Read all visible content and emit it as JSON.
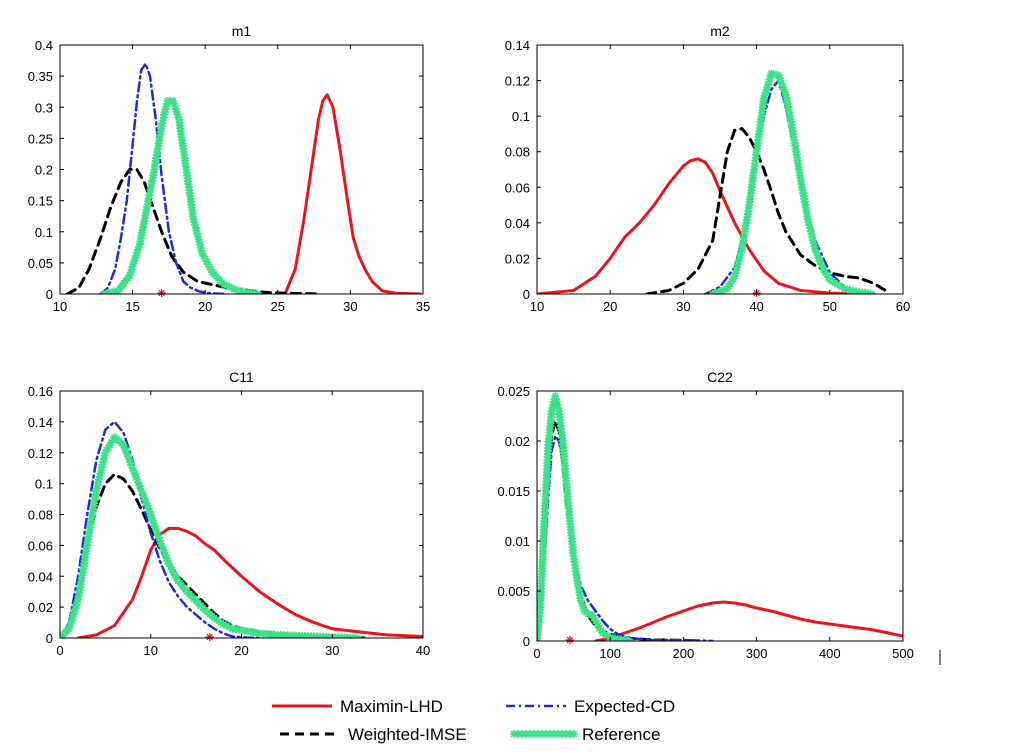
{
  "colors": {
    "maximin": "#e8161b",
    "expected": "#1f2bd6",
    "weighted": "#000000",
    "reference": "#3ee08a",
    "marker": "#e8161b"
  },
  "legend": {
    "entries": [
      {
        "key": "maximin",
        "label": "Maximin-LHD",
        "style": "solid"
      },
      {
        "key": "expected",
        "label": "Expected-CD",
        "style": "dashdot"
      },
      {
        "key": "weighted",
        "label": "Weighted-IMSE",
        "style": "dashed"
      },
      {
        "key": "reference",
        "label": "Reference",
        "style": "starred"
      }
    ]
  },
  "chart_data": [
    {
      "type": "line",
      "title": "m1",
      "xlim": [
        10,
        35
      ],
      "ylim": [
        0,
        0.4
      ],
      "xticks": [
        10,
        15,
        20,
        25,
        30,
        35
      ],
      "yticks": [
        0,
        0.05,
        0.1,
        0.15,
        0.2,
        0.25,
        0.3,
        0.35,
        0.4
      ],
      "xtick_labels": [
        "10",
        "15",
        "20",
        "25",
        "30",
        "35"
      ],
      "ytick_labels": [
        "0",
        "0.05",
        "0.1",
        "0.15",
        "0.2",
        "0.25",
        "0.3",
        "0.35",
        "0.4"
      ],
      "true_value": 17,
      "series": [
        {
          "name": "Maximin-LHD",
          "key": "maximin",
          "x": [
            25.5,
            26.2,
            26.8,
            27.3,
            27.8,
            28.1,
            28.4,
            28.8,
            29.3,
            29.8,
            30.2,
            30.6,
            31.0,
            31.5,
            32.2,
            33.2,
            34.8
          ],
          "y": [
            0,
            0.04,
            0.12,
            0.2,
            0.28,
            0.31,
            0.32,
            0.3,
            0.23,
            0.15,
            0.09,
            0.06,
            0.04,
            0.02,
            0.005,
            0.001,
            0
          ]
        },
        {
          "name": "Expected-CD",
          "key": "expected",
          "x": [
            12.8,
            13.3,
            13.8,
            14.2,
            14.6,
            15.0,
            15.3,
            15.6,
            15.9,
            16.2,
            16.6,
            17.0,
            17.5,
            18.0,
            18.5,
            19.0,
            19.6,
            20.4,
            21.5
          ],
          "y": [
            0,
            0.01,
            0.04,
            0.09,
            0.15,
            0.24,
            0.31,
            0.36,
            0.37,
            0.35,
            0.28,
            0.19,
            0.1,
            0.05,
            0.02,
            0.01,
            0.004,
            0.001,
            0
          ]
        },
        {
          "name": "Weighted-IMSE",
          "key": "weighted",
          "x": [
            10.5,
            11.3,
            12.0,
            12.8,
            13.5,
            14.2,
            14.8,
            15.3,
            15.8,
            16.4,
            17.0,
            17.7,
            18.5,
            19.5,
            20.5,
            21.5,
            22.5,
            23.5,
            24.5,
            26.0,
            28.0
          ],
          "y": [
            0,
            0.01,
            0.04,
            0.09,
            0.14,
            0.18,
            0.2,
            0.2,
            0.18,
            0.14,
            0.1,
            0.06,
            0.035,
            0.02,
            0.015,
            0.01,
            0.007,
            0.004,
            0.002,
            0.001,
            0
          ]
        },
        {
          "name": "Reference",
          "key": "reference",
          "x": [
            13.0,
            14.0,
            14.8,
            15.5,
            16.0,
            16.5,
            17.0,
            17.4,
            17.8,
            18.2,
            18.7,
            19.2,
            19.8,
            20.5,
            21.3,
            22.2,
            23.0,
            23.8
          ],
          "y": [
            0,
            0.005,
            0.03,
            0.08,
            0.14,
            0.2,
            0.27,
            0.31,
            0.31,
            0.28,
            0.2,
            0.12,
            0.065,
            0.035,
            0.015,
            0.006,
            0.002,
            0
          ]
        }
      ]
    },
    {
      "type": "line",
      "title": "m2",
      "xlim": [
        10,
        60
      ],
      "ylim": [
        0,
        0.14
      ],
      "xticks": [
        10,
        20,
        30,
        40,
        50,
        60
      ],
      "yticks": [
        0,
        0.02,
        0.04,
        0.06,
        0.08,
        0.1,
        0.12,
        0.14
      ],
      "xtick_labels": [
        "10",
        "20",
        "30",
        "40",
        "50",
        "60"
      ],
      "ytick_labels": [
        "0",
        "0.02",
        "0.04",
        "0.06",
        "0.08",
        "0.1",
        "0.12",
        "0.14"
      ],
      "true_value": 40,
      "series": [
        {
          "name": "Maximin-LHD",
          "key": "maximin",
          "x": [
            10,
            15,
            18,
            20,
            22,
            24,
            26,
            28,
            30,
            31,
            32,
            33,
            34,
            35,
            37,
            39,
            41,
            43,
            46,
            50,
            55
          ],
          "y": [
            0,
            0.002,
            0.01,
            0.02,
            0.032,
            0.04,
            0.05,
            0.062,
            0.072,
            0.075,
            0.076,
            0.074,
            0.068,
            0.058,
            0.04,
            0.025,
            0.013,
            0.006,
            0.002,
            0.0005,
            0
          ]
        },
        {
          "name": "Expected-CD",
          "key": "expected",
          "x": [
            33,
            35,
            37,
            38,
            39,
            40,
            41,
            42,
            43,
            44,
            45,
            46,
            47,
            48,
            50,
            52,
            54,
            56
          ],
          "y": [
            0,
            0.004,
            0.015,
            0.03,
            0.055,
            0.08,
            0.1,
            0.115,
            0.12,
            0.105,
            0.085,
            0.065,
            0.045,
            0.03,
            0.012,
            0.004,
            0.001,
            0
          ]
        },
        {
          "name": "Weighted-IMSE",
          "key": "weighted",
          "x": [
            25,
            28,
            30,
            32,
            34,
            35,
            36,
            37,
            38,
            39,
            40,
            41,
            42,
            43,
            44,
            46,
            48,
            50,
            52,
            54,
            56,
            58
          ],
          "y": [
            0,
            0.002,
            0.006,
            0.014,
            0.03,
            0.055,
            0.08,
            0.092,
            0.093,
            0.088,
            0.08,
            0.07,
            0.058,
            0.045,
            0.035,
            0.022,
            0.016,
            0.012,
            0.01,
            0.009,
            0.006,
            0.001
          ]
        },
        {
          "name": "Reference",
          "key": "reference",
          "x": [
            34,
            36,
            37,
            38,
            39,
            40,
            41,
            42,
            43,
            44,
            45,
            46,
            47,
            48,
            49,
            50,
            52,
            54,
            56
          ],
          "y": [
            0,
            0.003,
            0.01,
            0.025,
            0.05,
            0.08,
            0.11,
            0.124,
            0.123,
            0.112,
            0.09,
            0.065,
            0.042,
            0.025,
            0.015,
            0.008,
            0.003,
            0.001,
            0
          ]
        }
      ]
    },
    {
      "type": "line",
      "title": "C11",
      "xlim": [
        0,
        40
      ],
      "ylim": [
        0,
        0.16
      ],
      "xticks": [
        0,
        10,
        20,
        30,
        40
      ],
      "yticks": [
        0,
        0.02,
        0.04,
        0.06,
        0.08,
        0.1,
        0.12,
        0.14,
        0.16
      ],
      "xtick_labels": [
        "0",
        "10",
        "20",
        "30",
        "40"
      ],
      "ytick_labels": [
        "0",
        "0.02",
        "0.04",
        "0.06",
        "0.08",
        "0.1",
        "0.12",
        "0.14",
        "0.16"
      ],
      "true_value": 16.5,
      "series": [
        {
          "name": "Maximin-LHD",
          "key": "maximin",
          "x": [
            2,
            4,
            6,
            8,
            9,
            10,
            11,
            12,
            13,
            14,
            15,
            16,
            17,
            18,
            20,
            22,
            24,
            26,
            28,
            30,
            33,
            36,
            40
          ],
          "y": [
            0,
            0.002,
            0.008,
            0.025,
            0.04,
            0.057,
            0.067,
            0.071,
            0.071,
            0.069,
            0.066,
            0.061,
            0.057,
            0.051,
            0.04,
            0.03,
            0.022,
            0.015,
            0.01,
            0.006,
            0.004,
            0.002,
            0.001
          ]
        },
        {
          "name": "Expected-CD",
          "key": "expected",
          "x": [
            0,
            1,
            2,
            3,
            4,
            5,
            6,
            7,
            8,
            9,
            10,
            11,
            12,
            13,
            14,
            15,
            16,
            17,
            18,
            19,
            20,
            21,
            22
          ],
          "y": [
            0,
            0.01,
            0.04,
            0.08,
            0.115,
            0.135,
            0.14,
            0.133,
            0.115,
            0.09,
            0.068,
            0.05,
            0.036,
            0.027,
            0.02,
            0.015,
            0.01,
            0.006,
            0.003,
            0.001,
            0.0005,
            0.0002,
            0
          ]
        },
        {
          "name": "Weighted-IMSE",
          "key": "weighted",
          "x": [
            0,
            1,
            2,
            3,
            4,
            5,
            6,
            7,
            8,
            9,
            10,
            11,
            12,
            13,
            14,
            15,
            16,
            17,
            18,
            19,
            20,
            22,
            24,
            26,
            28,
            30,
            32,
            34
          ],
          "y": [
            0,
            0.007,
            0.03,
            0.06,
            0.085,
            0.1,
            0.106,
            0.103,
            0.095,
            0.083,
            0.07,
            0.058,
            0.048,
            0.04,
            0.034,
            0.028,
            0.022,
            0.016,
            0.011,
            0.008,
            0.006,
            0.004,
            0.003,
            0.002,
            0.001,
            0.0005,
            0.0002,
            0
          ]
        },
        {
          "name": "Reference",
          "key": "reference",
          "x": [
            0,
            1,
            2,
            3,
            4,
            5,
            6,
            7,
            8,
            9,
            10,
            11,
            12,
            13,
            14,
            15,
            16,
            17,
            18,
            19,
            20,
            21,
            22,
            24,
            26,
            28,
            30,
            33
          ],
          "y": [
            0,
            0.006,
            0.025,
            0.06,
            0.095,
            0.12,
            0.13,
            0.125,
            0.11,
            0.095,
            0.08,
            0.063,
            0.048,
            0.037,
            0.03,
            0.024,
            0.018,
            0.013,
            0.009,
            0.006,
            0.005,
            0.004,
            0.003,
            0.002,
            0.0015,
            0.001,
            0.0005,
            0
          ]
        }
      ]
    },
    {
      "type": "line",
      "title": "C22",
      "xlim": [
        0,
        500
      ],
      "ylim": [
        0,
        0.025
      ],
      "xticks": [
        0,
        100,
        200,
        300,
        400,
        500
      ],
      "yticks": [
        0,
        0.005,
        0.01,
        0.015,
        0.02,
        0.025
      ],
      "xtick_labels": [
        "0",
        "100",
        "200",
        "300",
        "400",
        "500"
      ],
      "ytick_labels": [
        "0",
        "0.005",
        "0.01",
        "0.015",
        "0.02",
        "0.025"
      ],
      "true_value": 45,
      "series": [
        {
          "name": "Maximin-LHD",
          "key": "maximin",
          "x": [
            80,
            100,
            120,
            140,
            160,
            180,
            200,
            220,
            240,
            255,
            270,
            285,
            300,
            320,
            340,
            360,
            380,
            400,
            420,
            440,
            460,
            480,
            500
          ],
          "y": [
            0,
            0.0003,
            0.0008,
            0.0013,
            0.0019,
            0.0025,
            0.003,
            0.0035,
            0.0038,
            0.0039,
            0.0038,
            0.0036,
            0.0033,
            0.003,
            0.0026,
            0.0022,
            0.0019,
            0.0017,
            0.0015,
            0.0013,
            0.0011,
            0.0008,
            0.0005
          ]
        },
        {
          "name": "Expected-CD",
          "key": "expected",
          "x": [
            0,
            5,
            10,
            15,
            20,
            25,
            30,
            35,
            40,
            45,
            50,
            55,
            60,
            70,
            80,
            90,
            100,
            110,
            120,
            140,
            160,
            180,
            200,
            220,
            240
          ],
          "y": [
            0,
            0.002,
            0.008,
            0.014,
            0.019,
            0.0205,
            0.02,
            0.018,
            0.015,
            0.012,
            0.009,
            0.007,
            0.0055,
            0.004,
            0.003,
            0.002,
            0.0012,
            0.0007,
            0.0004,
            0.0002,
            0.0001,
            0.0001,
            0.0001,
            5e-05,
            0
          ]
        },
        {
          "name": "Weighted-IMSE",
          "key": "weighted",
          "x": [
            0,
            5,
            10,
            15,
            20,
            25,
            30,
            35,
            40,
            45,
            50,
            55,
            60,
            70,
            80,
            90,
            100,
            120,
            140,
            160,
            180,
            200,
            220
          ],
          "y": [
            0,
            0.003,
            0.01,
            0.016,
            0.0205,
            0.022,
            0.021,
            0.018,
            0.014,
            0.011,
            0.008,
            0.006,
            0.0045,
            0.0025,
            0.0015,
            0.001,
            0.0007,
            0.0003,
            0.0002,
            0.0001,
            0.0001,
            5e-05,
            0
          ]
        },
        {
          "name": "Reference",
          "key": "reference",
          "x": [
            0,
            5,
            10,
            15,
            20,
            25,
            30,
            35,
            40,
            45,
            50,
            55,
            60,
            65,
            70,
            75,
            80,
            85,
            90,
            100,
            110,
            120,
            130
          ],
          "y": [
            0,
            0.004,
            0.012,
            0.019,
            0.023,
            0.0245,
            0.023,
            0.02,
            0.016,
            0.012,
            0.0085,
            0.006,
            0.004,
            0.003,
            0.0027,
            0.0026,
            0.002,
            0.0013,
            0.0008,
            0.0004,
            0.0002,
            0.0001,
            0
          ]
        }
      ]
    }
  ]
}
